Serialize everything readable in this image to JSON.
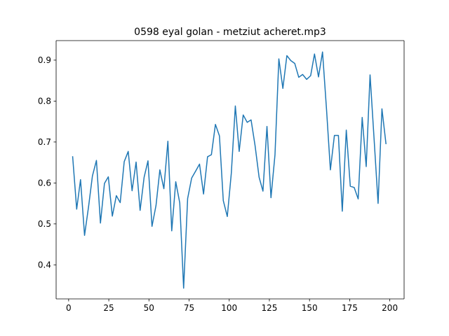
{
  "chart_data": {
    "type": "line",
    "title": "0598 eyal golan - metziut acheret.mp3",
    "xlabel": "",
    "ylabel": "",
    "xlim": [
      -7.8,
      208.9
    ],
    "ylim": [
      0.3168,
      0.9477
    ],
    "x_ticks": [
      0,
      25,
      50,
      75,
      100,
      125,
      150,
      175,
      200
    ],
    "y_ticks": [
      0.4,
      0.5,
      0.6,
      0.7,
      0.8,
      0.9
    ],
    "grid": false,
    "legend": "none",
    "series": [
      {
        "color": "#1f77b4",
        "x": [
          2.5,
          5.0,
          7.4,
          9.9,
          12.4,
          14.8,
          17.3,
          19.8,
          22.3,
          24.7,
          27.2,
          29.7,
          32.1,
          34.6,
          37.1,
          39.5,
          42.0,
          44.5,
          47.0,
          49.4,
          51.9,
          54.4,
          56.8,
          59.3,
          61.8,
          64.2,
          66.7,
          69.2,
          71.6,
          74.1,
          76.6,
          79.1,
          81.5,
          84.0,
          86.5,
          88.9,
          91.4,
          93.9,
          96.3,
          98.8,
          101.3,
          103.8,
          106.2,
          108.7,
          111.2,
          113.6,
          116.1,
          118.6,
          121.0,
          123.5,
          126.0,
          128.5,
          130.9,
          133.4,
          135.9,
          138.3,
          140.8,
          143.3,
          145.7,
          148.2,
          150.7,
          153.1,
          155.6,
          158.1,
          160.6,
          163.0,
          165.5,
          168.0,
          170.4,
          172.9,
          175.4,
          177.8,
          180.3,
          182.8,
          185.3,
          187.7,
          190.2,
          192.7,
          195.1,
          197.6
        ],
        "y": [
          0.664,
          0.536,
          0.608,
          0.472,
          0.542,
          0.617,
          0.655,
          0.502,
          0.599,
          0.615,
          0.519,
          0.569,
          0.552,
          0.652,
          0.677,
          0.581,
          0.651,
          0.533,
          0.614,
          0.654,
          0.494,
          0.545,
          0.632,
          0.586,
          0.702,
          0.483,
          0.603,
          0.551,
          0.343,
          0.562,
          0.612,
          0.629,
          0.646,
          0.573,
          0.664,
          0.669,
          0.743,
          0.715,
          0.557,
          0.518,
          0.624,
          0.788,
          0.677,
          0.766,
          0.748,
          0.754,
          0.691,
          0.614,
          0.58,
          0.738,
          0.564,
          0.669,
          0.903,
          0.831,
          0.911,
          0.899,
          0.892,
          0.858,
          0.865,
          0.853,
          0.862,
          0.915,
          0.859,
          0.92,
          0.779,
          0.632,
          0.716,
          0.716,
          0.531,
          0.729,
          0.592,
          0.589,
          0.561,
          0.76,
          0.64,
          0.864,
          0.708,
          0.55,
          0.781,
          0.696
        ]
      }
    ]
  }
}
